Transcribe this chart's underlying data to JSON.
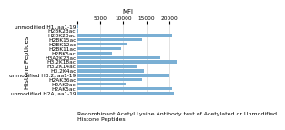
{
  "title": "Recombinant Acetyl Lysine Antibody test of Acetylated or Unmodified\nHistone Peptides",
  "xlabel": "MFI",
  "ylabel": "Histone Peptides",
  "xlim": [
    0,
    22000
  ],
  "xticks": [
    0,
    5000,
    10000,
    15000,
    20000
  ],
  "xtick_labels": [
    "",
    "5000",
    "10000",
    "15000",
    "20000"
  ],
  "categories": [
    "unmodified H2A, aa1-19",
    "H2AK5ac",
    "H2AK9ac",
    "H2AK36ac",
    "unmodified H3.2, aa1-19",
    "H3.2K4ac",
    "H3.2K14ac",
    "H3.2K18ac",
    "H3A2K23ac",
    "H2BK5ac",
    "H2BK11ac",
    "H2BK12ac",
    "H2BK15ac",
    "H2BK20ac",
    "H2BK23ac",
    "unmodified H1, aa1-19"
  ],
  "values": [
    21000,
    20500,
    10500,
    14000,
    20000,
    14500,
    13000,
    21500,
    18000,
    7500,
    9500,
    11000,
    14000,
    20500,
    200,
    200
  ],
  "bar_color": "#7aafd4",
  "background_color": "#ffffff",
  "title_fontsize": 4.5,
  "label_fontsize": 5,
  "tick_fontsize": 4.2,
  "ylabel_fontsize": 5
}
